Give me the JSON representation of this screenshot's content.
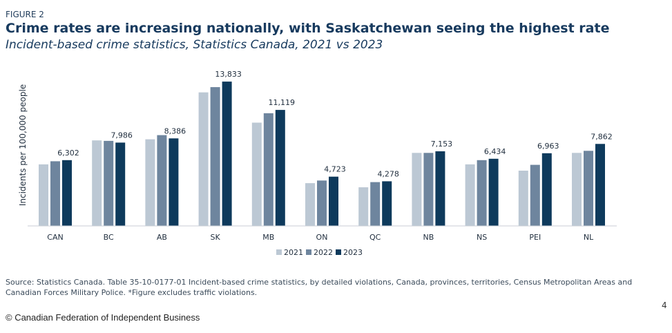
{
  "figure_label": "FIGURE 2",
  "title": "Crime rates are increasing nationally, with Saskatchewan seeing the highest rate",
  "subtitle": "Incident-based crime statistics, Statistics Canada, 2021 vs 2023",
  "source": "Source: Statistics Canada. Table 35-10-0177-01 Incident-based crime statistics, by detailed violations, Canada, provinces, territories, Census Metropolitan Areas and Canadian Forces Military Police. *Figure excludes traffic violations.",
  "page_number": "4",
  "copyright": "© Canadian Federation of Independent Business",
  "colors": {
    "2021": "#bcc8d4",
    "2022": "#6e859e",
    "2023": "#0e3a5c"
  },
  "chart_data": {
    "type": "bar",
    "ylabel": "Incidents per 100,000 people",
    "xlabel": "",
    "categories": [
      "CAN",
      "BC",
      "AB",
      "SK",
      "MB",
      "ON",
      "QC",
      "NB",
      "NS",
      "PEI",
      "NL"
    ],
    "series": [
      {
        "name": "2021",
        "values": [
          5900,
          8200,
          8300,
          12800,
          9900,
          4100,
          3700,
          7000,
          5900,
          5300,
          7000
        ]
      },
      {
        "name": "2022",
        "values": [
          6200,
          8150,
          8700,
          13300,
          10800,
          4350,
          4200,
          7000,
          6300,
          5850,
          7200
        ]
      },
      {
        "name": "2023",
        "values": [
          6302,
          7986,
          8386,
          13833,
          11119,
          4723,
          4278,
          7153,
          6434,
          6963,
          7862
        ]
      }
    ],
    "data_labels": [
      "6,302",
      "7,986",
      "8,386",
      "13,833",
      "11,119",
      "4,723",
      "4,278",
      "7,153",
      "6,434",
      "6,963",
      "7,862"
    ],
    "ylim": [
      0,
      14500
    ],
    "grid": false,
    "legend_position": "bottom"
  }
}
